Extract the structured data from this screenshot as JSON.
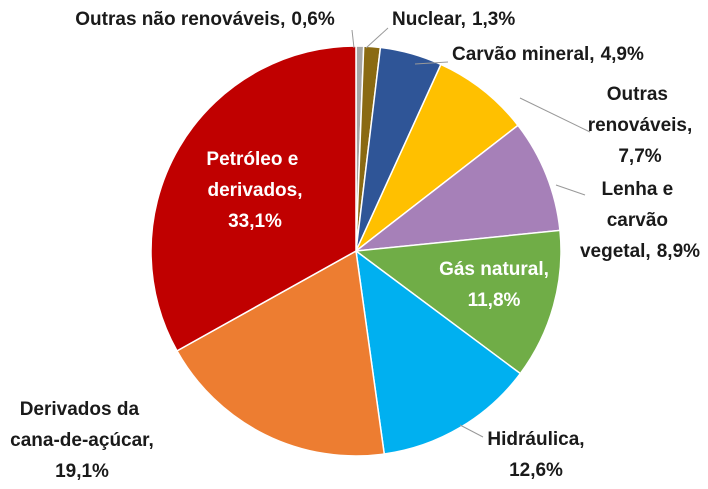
{
  "chart_data": {
    "type": "pie",
    "categories": [
      "Outras não renováveis,",
      "Nuclear,",
      "Carvão mineral,",
      "Outras renováveis,",
      "Lenha e carvão vegetal,",
      "Gás natural,",
      "Hidráulica,",
      "Derivados da cana-de-açúcar,",
      "Petróleo e derivados,"
    ],
    "values": [
      0.6,
      1.3,
      4.9,
      7.7,
      8.9,
      11.8,
      12.6,
      19.1,
      33.1
    ],
    "value_labels": [
      "0,6%",
      "1,3%",
      "4,9%",
      "7,7%",
      "8,9%",
      "11,8%",
      "12,6%",
      "19,1%",
      "33,1%"
    ],
    "colors": [
      "#a6a6a6",
      "#8a6a12",
      "#2f5597",
      "#ffc000",
      "#a680b8",
      "#70ad47",
      "#00b0f0",
      "#ed7d31",
      "#c00000"
    ]
  }
}
